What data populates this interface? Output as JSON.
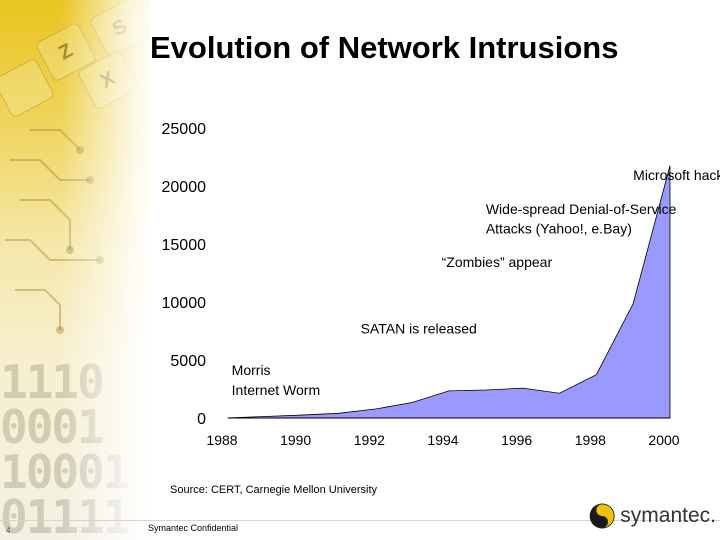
{
  "slide": {
    "title": "Evolution of Network Intrusions",
    "source": "Source: CERT, Carnegie Mellon University",
    "page_number": "4",
    "footer_text": "Symantec Confidential",
    "logo_text": "symantec."
  },
  "decoration": {
    "keys": [
      "S",
      "Z",
      "X"
    ],
    "binary_rows": [
      "1110",
      "0001",
      "10001",
      "01111",
      "0111"
    ]
  },
  "colors": {
    "area_fill": "#9999ff",
    "area_stroke": "#000000",
    "logo_yellow": "#f2c200"
  },
  "chart_data": {
    "type": "area",
    "title": "",
    "xlabel": "",
    "ylabel": "",
    "x": [
      1988,
      1989,
      1990,
      1991,
      1992,
      1993,
      1994,
      1995,
      1996,
      1997,
      1998,
      1999,
      2000
    ],
    "series": [
      {
        "values": [
          6,
          132,
          252,
          406,
          773,
          1334,
          2340,
          2412,
          2573,
          2134,
          3734,
          9859,
          21756
        ]
      }
    ],
    "xlim": [
      1988,
      2000
    ],
    "ylim": [
      0,
      25000
    ],
    "y_ticks": [
      "0",
      "5000",
      "10000",
      "15000",
      "20000",
      "25000"
    ],
    "x_ticks": [
      "1988",
      "1990",
      "1992",
      "1994",
      "1996",
      "1998",
      "2000"
    ],
    "grid": false,
    "annotations": [
      {
        "text": "Microsoft hacked",
        "x": 1999.0,
        "y": 20500
      },
      {
        "text": "Wide-spread Denial-of-Service",
        "x": 1995.0,
        "y": 17600
      },
      {
        "text": "Attacks (Yahoo!, e.Bay)",
        "x": 1995.0,
        "y": 15900
      },
      {
        "text": "“Zombies” appear",
        "x": 1993.8,
        "y": 13000
      },
      {
        "text": "SATAN is released",
        "x": 1991.6,
        "y": 7300
      },
      {
        "text": "Morris",
        "x": 1988.1,
        "y": 3700
      },
      {
        "text": "Internet Worm",
        "x": 1988.1,
        "y": 2000
      }
    ]
  }
}
